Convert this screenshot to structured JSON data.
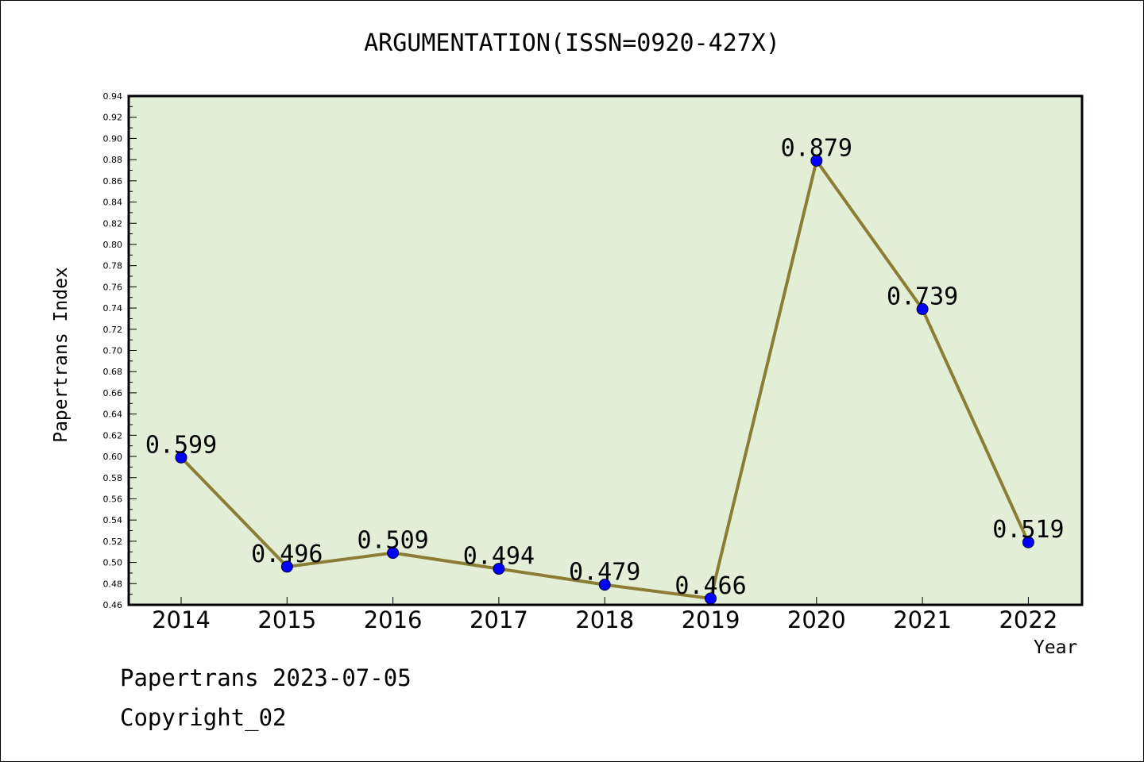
{
  "chart_data": {
    "type": "line",
    "title": "ARGUMENTATION(ISSN=0920-427X)",
    "xlabel": "Year",
    "ylabel": "Papertrans Index",
    "categories": [
      "2014",
      "2015",
      "2016",
      "2017",
      "2018",
      "2019",
      "2020",
      "2021",
      "2022"
    ],
    "values": [
      0.599,
      0.496,
      0.509,
      0.494,
      0.479,
      0.466,
      0.879,
      0.739,
      0.519
    ],
    "data_labels": [
      "0.599",
      "0.496",
      "0.509",
      "0.494",
      "0.479",
      "0.466",
      "0.879",
      "0.739",
      "0.519"
    ],
    "ylim": [
      0.46,
      0.94
    ],
    "yticks": [
      "0.46",
      "0.48",
      "0.50",
      "0.52",
      "0.54",
      "0.56",
      "0.58",
      "0.60",
      "0.62",
      "0.64",
      "0.66",
      "0.68",
      "0.70",
      "0.72",
      "0.74",
      "0.76",
      "0.78",
      "0.80",
      "0.82",
      "0.84",
      "0.86",
      "0.88",
      "0.90",
      "0.92",
      "0.94"
    ],
    "grid": false,
    "legend": "none",
    "colors": {
      "plot_background": "#e2efd6",
      "line": "#8b7d35",
      "marker": "#0000ff"
    }
  },
  "footer": {
    "line1": "Papertrans 2023-07-05",
    "line2": "Copyright_02"
  }
}
